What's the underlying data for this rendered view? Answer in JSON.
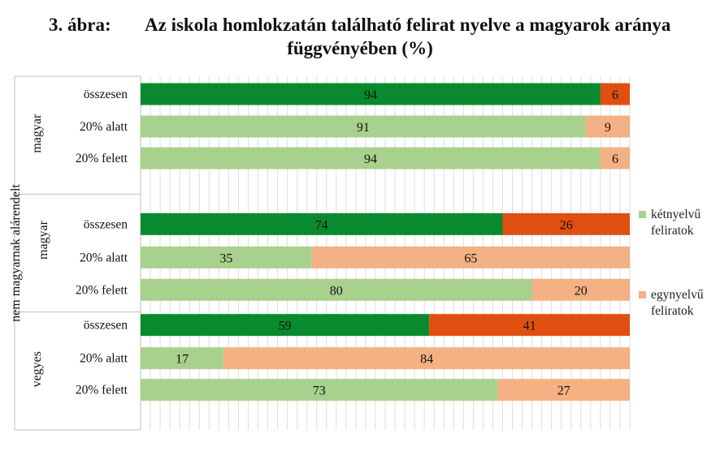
{
  "title": {
    "prefix": "3. ábra:",
    "line1": "Az iskola homlokzatán található felirat nyelve a magyarok aránya",
    "line2": "függvényében (%)"
  },
  "legend": [
    {
      "label_line1": "kétnyelvű",
      "label_line2": "feliratok",
      "color": "#a9d18e"
    },
    {
      "label_line1": "egynyelvű",
      "label_line2": "feliratok",
      "color": "#f4b183"
    }
  ],
  "colors": {
    "bilingual_dark": "#0a8a2e",
    "monolingual_dark": "#e04f12",
    "bilingual_light": "#a9d18e",
    "monolingual_light": "#f4b183"
  },
  "chart_data": {
    "type": "bar",
    "stacked": true,
    "orientation": "horizontal",
    "groups": [
      {
        "name": "magyar",
        "rows": [
          {
            "label": "összesen",
            "values": [
              94,
              6
            ],
            "emphasis": true
          },
          {
            "label": "20% alatt",
            "values": [
              91,
              9
            ],
            "emphasis": false
          },
          {
            "label": "20% felett",
            "values": [
              94,
              6
            ],
            "emphasis": false
          }
        ]
      },
      {
        "name_line1": "nem magyarnak alárendelt",
        "name_line2": "magyar",
        "rows": [
          {
            "label": "összesen",
            "values": [
              74,
              26
            ],
            "emphasis": true
          },
          {
            "label": "20% alatt",
            "values": [
              35,
              65
            ],
            "emphasis": false
          },
          {
            "label": "20% felett",
            "values": [
              80,
              20
            ],
            "emphasis": false
          }
        ]
      },
      {
        "name": "vegyes",
        "rows": [
          {
            "label": "összesen",
            "values": [
              59,
              41
            ],
            "emphasis": true
          },
          {
            "label": "20% alatt",
            "values": [
              17,
              84
            ],
            "emphasis": false
          },
          {
            "label": "20% felett",
            "values": [
              73,
              27
            ],
            "emphasis": false
          }
        ]
      }
    ],
    "series": [
      {
        "name": "kétnyelvű feliratok"
      },
      {
        "name": "egynyelvű feliratok"
      }
    ],
    "xlim": [
      0,
      100
    ],
    "grid": true,
    "legend_position": "right"
  }
}
